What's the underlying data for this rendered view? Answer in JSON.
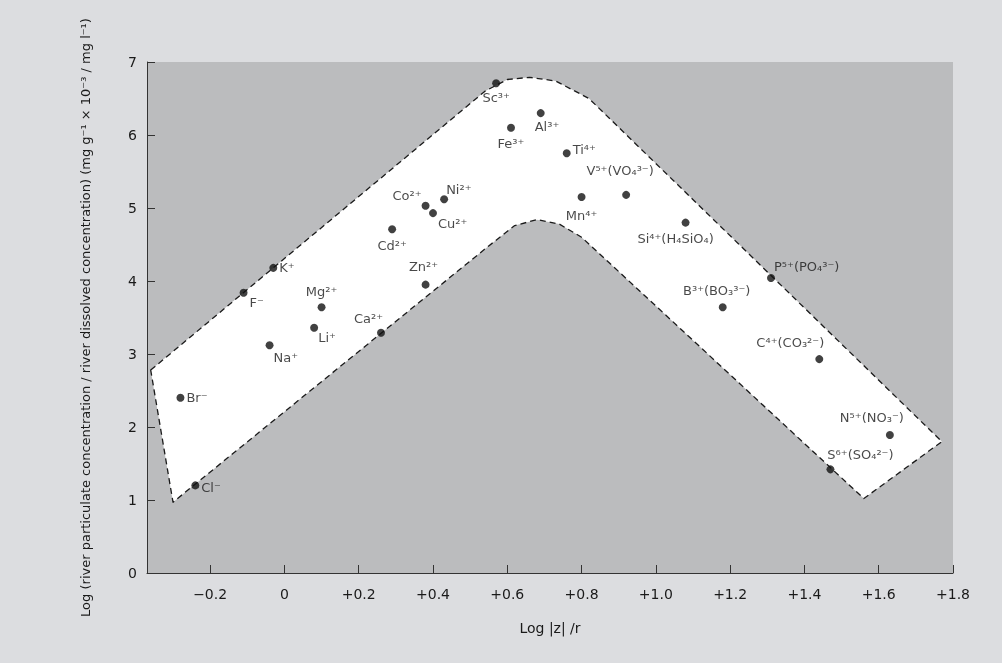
{
  "chart_data": {
    "type": "scatter",
    "xlabel": "Log |z| /r",
    "ylabel": "Log (river particulate concentration / river dissolved concentration) (mg g⁻¹ × 10⁻³ / mg l⁻¹)",
    "xlim": [
      -0.37,
      1.8
    ],
    "ylim": [
      0,
      7
    ],
    "xticks": [
      {
        "value": -0.2,
        "label": "−0.2"
      },
      0,
      {
        "value": 0.2,
        "label": "+0.2"
      },
      {
        "value": 0.4,
        "label": "+0.4"
      },
      {
        "value": 0.6,
        "label": "+0.6"
      },
      {
        "value": 0.8,
        "label": "+0.8"
      },
      {
        "value": 1.0,
        "label": "+1.0"
      },
      {
        "value": 1.2,
        "label": "+1.2"
      },
      {
        "value": 1.4,
        "label": "+1.4"
      },
      {
        "value": 1.6,
        "label": "+1.6"
      },
      {
        "value": 1.8,
        "label": "+1.8"
      }
    ],
    "yticks": [
      0,
      1,
      2,
      3,
      4,
      5,
      6,
      7
    ],
    "series": [
      {
        "marker": "circle",
        "color": "#111111",
        "x": [
          -0.28,
          -0.24,
          -0.11,
          -0.04,
          -0.03,
          0.08,
          0.1,
          0.26,
          0.29,
          0.38,
          0.38,
          0.4,
          0.43,
          0.57,
          0.61,
          0.69,
          0.76,
          0.8,
          0.92,
          1.08,
          1.18,
          1.31,
          1.44,
          1.47,
          1.63
        ],
        "values": [
          2.4,
          1.2,
          3.84,
          3.12,
          4.18,
          3.36,
          3.64,
          3.29,
          4.71,
          3.95,
          5.03,
          4.93,
          5.12,
          6.71,
          6.1,
          6.3,
          5.75,
          5.15,
          5.18,
          4.8,
          3.64,
          4.04,
          2.93,
          1.42,
          1.89
        ],
        "value_labels": [
          "Br⁻",
          "Cl⁻",
          "F⁻",
          "Na⁺",
          "K⁺",
          "Li⁺",
          "Mg²⁺",
          "Ca²⁺",
          "Cd²⁺",
          "Zn²⁺",
          "Co²⁺",
          "Cu²⁺",
          "Ni²⁺",
          "Sc³⁺",
          "Fe³⁺",
          "Al³⁺",
          "Ti⁴⁺",
          "Mn⁴⁺",
          "V⁵⁺(VO₄³⁻)",
          "Si⁴⁺(H₄SiO₄)",
          "B³⁺(BO₃³⁻)",
          "P⁵⁺(PO₄³⁻)",
          "C⁴⁺(CO₃²⁻)",
          "S⁶⁺(SO₄²⁻)",
          "N⁵⁺(NO₃⁻)"
        ]
      },
      {
        "type": "area",
        "color": "#ffffff",
        "line_style": "dashed",
        "x": [
          -0.36,
          0.54,
          0.6,
          0.66,
          0.73,
          0.82,
          1.77,
          1.56,
          0.8,
          0.74,
          0.68,
          0.62,
          0.55,
          -0.3
        ],
        "values": [
          2.78,
          6.6,
          6.76,
          6.79,
          6.74,
          6.5,
          1.8,
          1.02,
          4.6,
          4.78,
          4.84,
          4.76,
          4.48,
          0.97
        ]
      }
    ]
  }
}
